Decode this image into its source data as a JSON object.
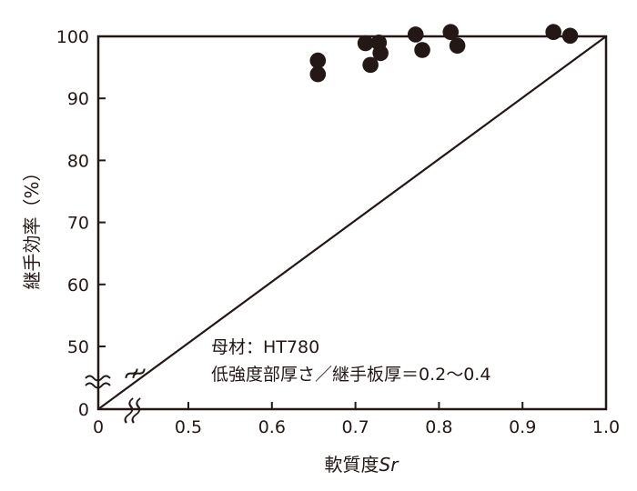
{
  "chart_data": {
    "type": "scatter",
    "title": "",
    "xlabel": "軟質度",
    "xlabel_var": "Sr",
    "ylabel": "継手効率（%）",
    "x_ticks": [
      "0",
      "0.5",
      "0.6",
      "0.7",
      "0.8",
      "0.9",
      "1.0"
    ],
    "y_ticks": [
      "0",
      "50",
      "60",
      "70",
      "80",
      "90",
      "100"
    ],
    "xlim": [
      0,
      1.0
    ],
    "ylim": [
      0,
      100
    ],
    "axis_break": "both",
    "grid": false,
    "series": [
      {
        "points": [
          [
            0.655,
            96.1
          ],
          [
            0.655,
            93.9
          ],
          [
            0.712,
            98.9
          ],
          [
            0.718,
            95.4
          ],
          [
            0.728,
            99.0
          ],
          [
            0.73,
            97.3
          ],
          [
            0.772,
            100.3
          ],
          [
            0.78,
            97.8
          ],
          [
            0.814,
            100.7
          ],
          [
            0.822,
            98.5
          ],
          [
            0.937,
            100.7
          ],
          [
            0.957,
            100.1
          ]
        ]
      }
    ],
    "reference_line": {
      "from": [
        0,
        0
      ],
      "to": [
        1.0,
        100
      ]
    },
    "annotations": [
      "母材：HT780",
      "低強度部厚さ／継手板厚＝0.2〜0.4"
    ],
    "colors": {
      "ink": "#231815",
      "background": "#ffffff"
    }
  }
}
